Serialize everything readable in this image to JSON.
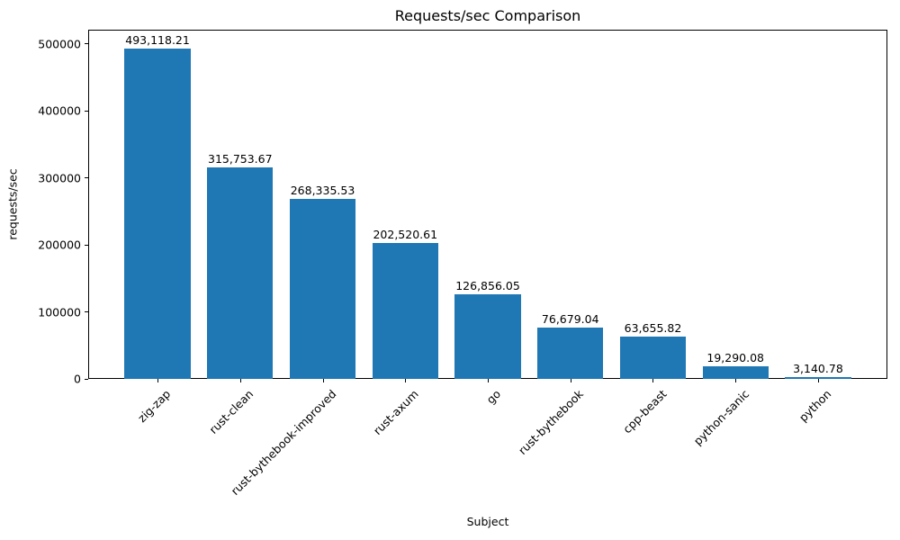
{
  "chart_data": {
    "type": "bar",
    "title": "Requests/sec Comparison",
    "xlabel": "Subject",
    "ylabel": "requests/sec",
    "categories": [
      "zig-zap",
      "rust-clean",
      "rust-bythebook-improved",
      "rust-axum",
      "go",
      "rust-bythebook",
      "cpp-beast",
      "python-sanic",
      "python"
    ],
    "values": [
      493118.21,
      315753.67,
      268335.53,
      202520.61,
      126856.05,
      76679.04,
      63655.82,
      19290.08,
      3140.78
    ],
    "value_labels": [
      "493,118.21",
      "315,753.67",
      "268,335.53",
      "202,520.61",
      "126,856.05",
      "76,679.04",
      "63,655.82",
      "19,290.08",
      "3,140.78"
    ],
    "yticks": [
      0,
      100000,
      200000,
      300000,
      400000,
      500000
    ],
    "ytick_labels": [
      "0",
      "100000",
      "200000",
      "300000",
      "400000",
      "500000"
    ],
    "ylim": [
      0,
      521505
    ],
    "grid": false,
    "legend_position": "none",
    "bar_color": "#1f77b4",
    "axis_color": "#000000",
    "background_color": "#ffffff",
    "xtick_rotation_deg": 45
  }
}
